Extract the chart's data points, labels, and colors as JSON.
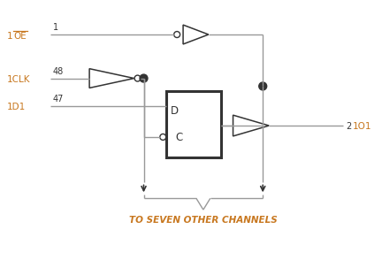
{
  "line_color": "#999999",
  "dark_color": "#333333",
  "label_color": "#c87820",
  "background": "#ffffff",
  "pin_labels": {
    "oe": "1OE",
    "clk": "1CLK",
    "d1": "1D1",
    "o1": "1O1",
    "pin_oe": "1",
    "pin_clk": "48",
    "pin_d1": "47",
    "pin_o1": "2"
  },
  "bottom_text": "TO SEVEN OTHER CHANNELS"
}
